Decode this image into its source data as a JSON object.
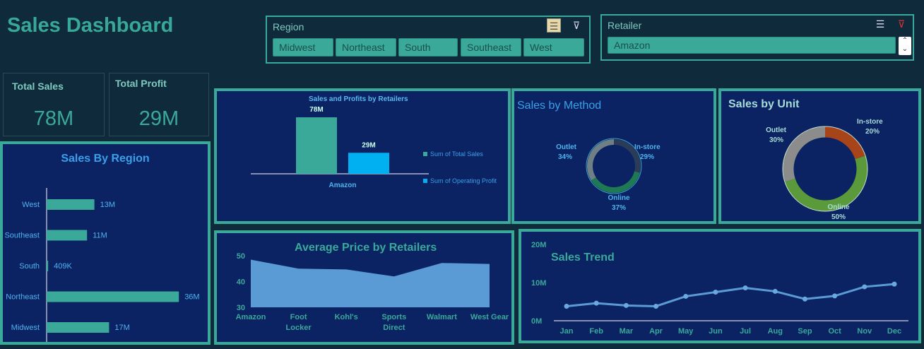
{
  "title": "Sales Dashboard",
  "region_slicer": {
    "title": "Region",
    "items": [
      "Midwest",
      "Northeast",
      "South",
      "Southeast",
      "West"
    ],
    "icons": [
      "multi-select-icon",
      "clear-filter-icon"
    ]
  },
  "retailer_slicer": {
    "title": "Retailer",
    "selected": "Amazon",
    "icons": [
      "multi-select-icon",
      "clear-filter-icon",
      "scroll-icon"
    ]
  },
  "kpis": {
    "total_sales": {
      "label": "Total Sales",
      "value": "78M"
    },
    "total_profit": {
      "label": "Total Profit",
      "value": "29M"
    }
  },
  "colors": {
    "teal": "#3aa99a",
    "blue": "#00b0f0",
    "panel": "#0b2263",
    "green": "#4e8a3e",
    "orange": "#a8441a",
    "grey": "#8c8c8c"
  },
  "charts": {
    "region": {
      "type": "bar",
      "title": "Sales By Region",
      "categories": [
        "West",
        "Southeast",
        "South",
        "Northeast",
        "Midwest"
      ],
      "values": [
        13,
        11,
        0.409,
        36,
        17
      ],
      "labels": [
        "13M",
        "11M",
        "409K",
        "36M",
        "17M"
      ],
      "xlim": [
        0,
        40
      ]
    },
    "retailers": {
      "type": "bar",
      "title": "Sales and Profits by Retailers",
      "categories": [
        "Amazon"
      ],
      "series": [
        {
          "name": "Sum of Total Sales",
          "values": [
            78
          ],
          "label": "78M"
        },
        {
          "name": "Sum of Operating Profit",
          "values": [
            29
          ],
          "label": "29M"
        }
      ],
      "ylim": [
        0,
        80
      ]
    },
    "method": {
      "type": "pie",
      "title": "Sales by Method",
      "labels": [
        "Outlet",
        "In-store",
        "Online"
      ],
      "values": [
        34,
        29,
        37
      ],
      "pct": [
        "34%",
        "29%",
        "37%"
      ]
    },
    "unit": {
      "type": "pie",
      "title": "Sales  by Unit",
      "labels": [
        "Outlet",
        "In-store",
        "Online"
      ],
      "values": [
        30,
        20,
        50
      ],
      "pct": [
        "30%",
        "20%",
        "50%"
      ]
    },
    "avg_price": {
      "type": "area",
      "title": "Average Price by Retailers",
      "categories": [
        "Amazon",
        "Foot Locker",
        "Kohl's",
        "Sports Direct",
        "Walmart",
        "West Gear"
      ],
      "values": [
        48.5,
        45,
        44.7,
        42,
        47.2,
        46.8
      ],
      "ylim": [
        30,
        50
      ],
      "yticks": [
        "30",
        "40",
        "50"
      ]
    },
    "trend": {
      "type": "line",
      "title": "Sales Trend",
      "categories": [
        "Jan",
        "Feb",
        "Mar",
        "Apr",
        "May",
        "Jun",
        "Jul",
        "Aug",
        "Sep",
        "Oct",
        "Nov",
        "Dec"
      ],
      "values": [
        3.8,
        4.6,
        4.0,
        3.8,
        6.4,
        7.5,
        8.6,
        7.7,
        5.7,
        6.5,
        8.9,
        9.6
      ],
      "ylim": [
        0,
        20
      ],
      "yticks": [
        "0M",
        "10M",
        "20M"
      ]
    }
  }
}
